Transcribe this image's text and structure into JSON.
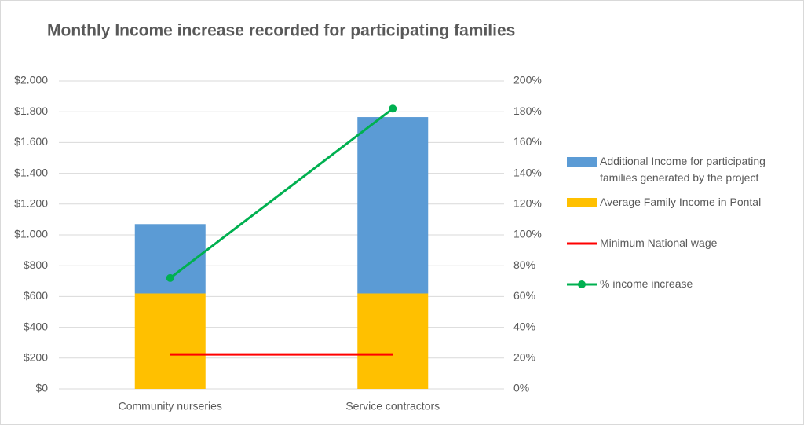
{
  "chart_data": {
    "type": "bar",
    "title": "Monthly Income increase recorded for participating families",
    "categories": [
      "Community nurseries",
      "Service contractors"
    ],
    "series": [
      {
        "name": "Additional Income for participating families generated by the project",
        "color": "#5b9bd5",
        "type": "bar",
        "stack": 1,
        "values": [
          450,
          1145
        ]
      },
      {
        "name": "Average Family Income in Pontal",
        "color": "#ffc000",
        "type": "bar",
        "stack": 0,
        "values": [
          620,
          620
        ]
      },
      {
        "name": "Minimum National wage",
        "color": "#ff0000",
        "type": "line",
        "values": [
          224,
          224
        ]
      },
      {
        "name": "% income increase",
        "color": "#00b050",
        "type": "line",
        "axis": "y2",
        "marker": true,
        "values": [
          72,
          182
        ]
      }
    ],
    "ylim": [
      0,
      2000
    ],
    "yticks": [
      {
        "value": 0,
        "label": "$0"
      },
      {
        "value": 200,
        "label": "$200"
      },
      {
        "value": 400,
        "label": "$400"
      },
      {
        "value": 600,
        "label": "$600"
      },
      {
        "value": 800,
        "label": "$800"
      },
      {
        "value": 1000,
        "label": "$1.000"
      },
      {
        "value": 1200,
        "label": "$1.200"
      },
      {
        "value": 1400,
        "label": "$1.400"
      },
      {
        "value": 1600,
        "label": "$1.600"
      },
      {
        "value": 1800,
        "label": "$1.800"
      },
      {
        "value": 2000,
        "label": "$2.000"
      }
    ],
    "y2lim": [
      0,
      200
    ],
    "y2ticks": [
      {
        "value": 0,
        "label": "0%"
      },
      {
        "value": 20,
        "label": "20%"
      },
      {
        "value": 40,
        "label": "40%"
      },
      {
        "value": 60,
        "label": "60%"
      },
      {
        "value": 80,
        "label": "80%"
      },
      {
        "value": 100,
        "label": "100%"
      },
      {
        "value": 120,
        "label": "120%"
      },
      {
        "value": 140,
        "label": "140%"
      },
      {
        "value": 160,
        "label": "160%"
      },
      {
        "value": 180,
        "label": "180%"
      },
      {
        "value": 200,
        "label": "200%"
      }
    ],
    "grid": true,
    "legend": "right"
  }
}
